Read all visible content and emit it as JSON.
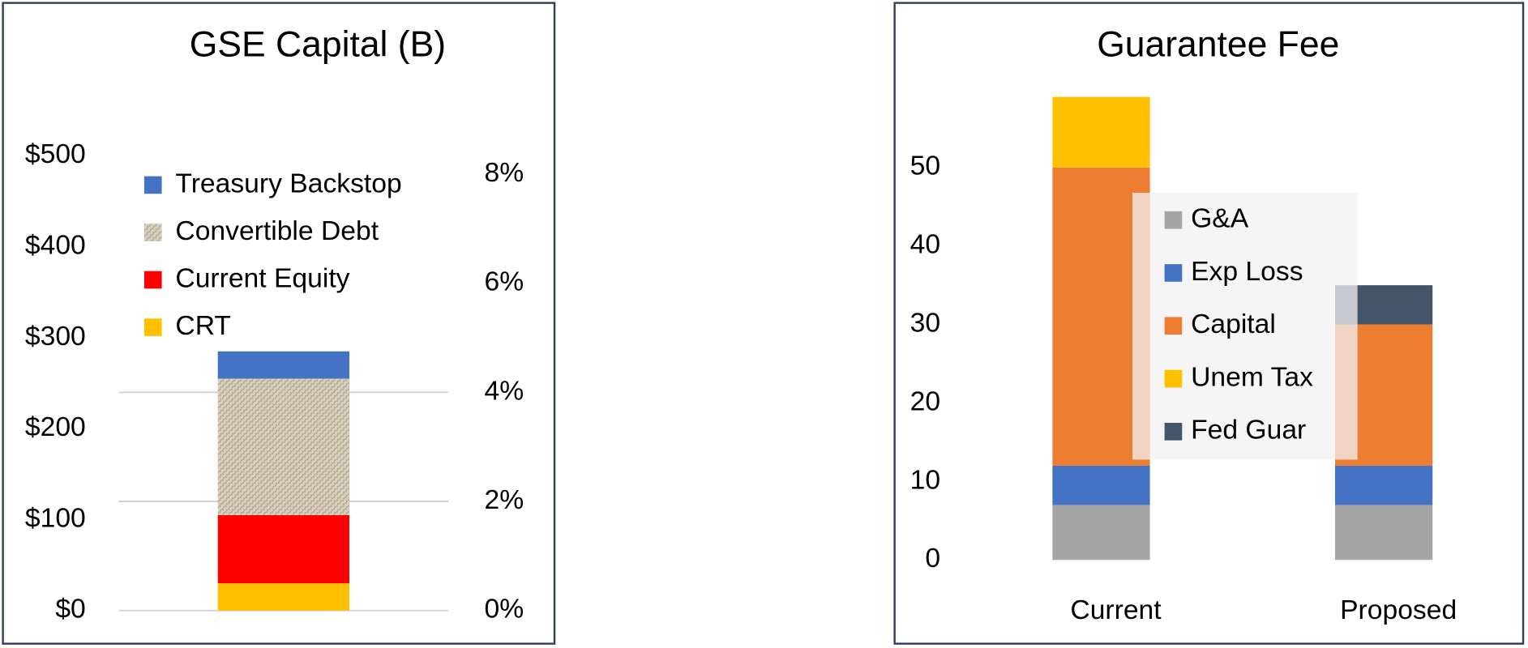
{
  "chart_data": [
    {
      "type": "stacked_bar",
      "title": "GSE Capital (B)",
      "categories": [
        null
      ],
      "series": [
        {
          "name": "CRT",
          "color": "#ffc000",
          "values": [
            30
          ]
        },
        {
          "name": "Current Equity",
          "color": "#ff0000",
          "values": [
            75
          ]
        },
        {
          "name": "Convertible Debt",
          "color": "#d8cfbd",
          "values": [
            150
          ]
        },
        {
          "name": "Treasury Backstop",
          "color": "#4472c4",
          "values": [
            30
          ]
        }
      ],
      "ylim": [
        0,
        550
      ],
      "yticks": [
        {
          "value": 0,
          "label": "$0"
        },
        {
          "value": 100,
          "label": "$100"
        },
        {
          "value": 200,
          "label": "$200"
        },
        {
          "value": 300,
          "label": "$300"
        },
        {
          "value": 400,
          "label": "$400"
        },
        {
          "value": 500,
          "label": "$500"
        }
      ],
      "y2lim": [
        0,
        9.17
      ],
      "y2ticks": [
        {
          "value": 0,
          "label": "0%"
        },
        {
          "value": 2,
          "label": "2%"
        },
        {
          "value": 4,
          "label": "4%"
        },
        {
          "value": 6,
          "label": "6%"
        },
        {
          "value": 8,
          "label": "8%"
        }
      ],
      "grid": true
    },
    {
      "type": "stacked_bar",
      "title": "Guarantee Fee",
      "categories": [
        "Current",
        "Proposed"
      ],
      "series": [
        {
          "name": "G&A",
          "color": "#a5a5a5",
          "values": [
            7,
            7
          ]
        },
        {
          "name": "Exp Loss",
          "color": "#4472c4",
          "values": [
            5,
            5
          ]
        },
        {
          "name": "Capital",
          "color": "#ed7d31",
          "values": [
            38,
            18
          ]
        },
        {
          "name": "Unem Tax",
          "color": "#ffc000",
          "values": [
            9,
            0
          ]
        },
        {
          "name": "Fed Guar",
          "color": "#44546a",
          "values": [
            0,
            5
          ]
        }
      ],
      "ylim": [
        0,
        60
      ],
      "yticks": [
        0,
        10,
        20,
        30,
        40,
        50
      ],
      "grid": false
    }
  ]
}
